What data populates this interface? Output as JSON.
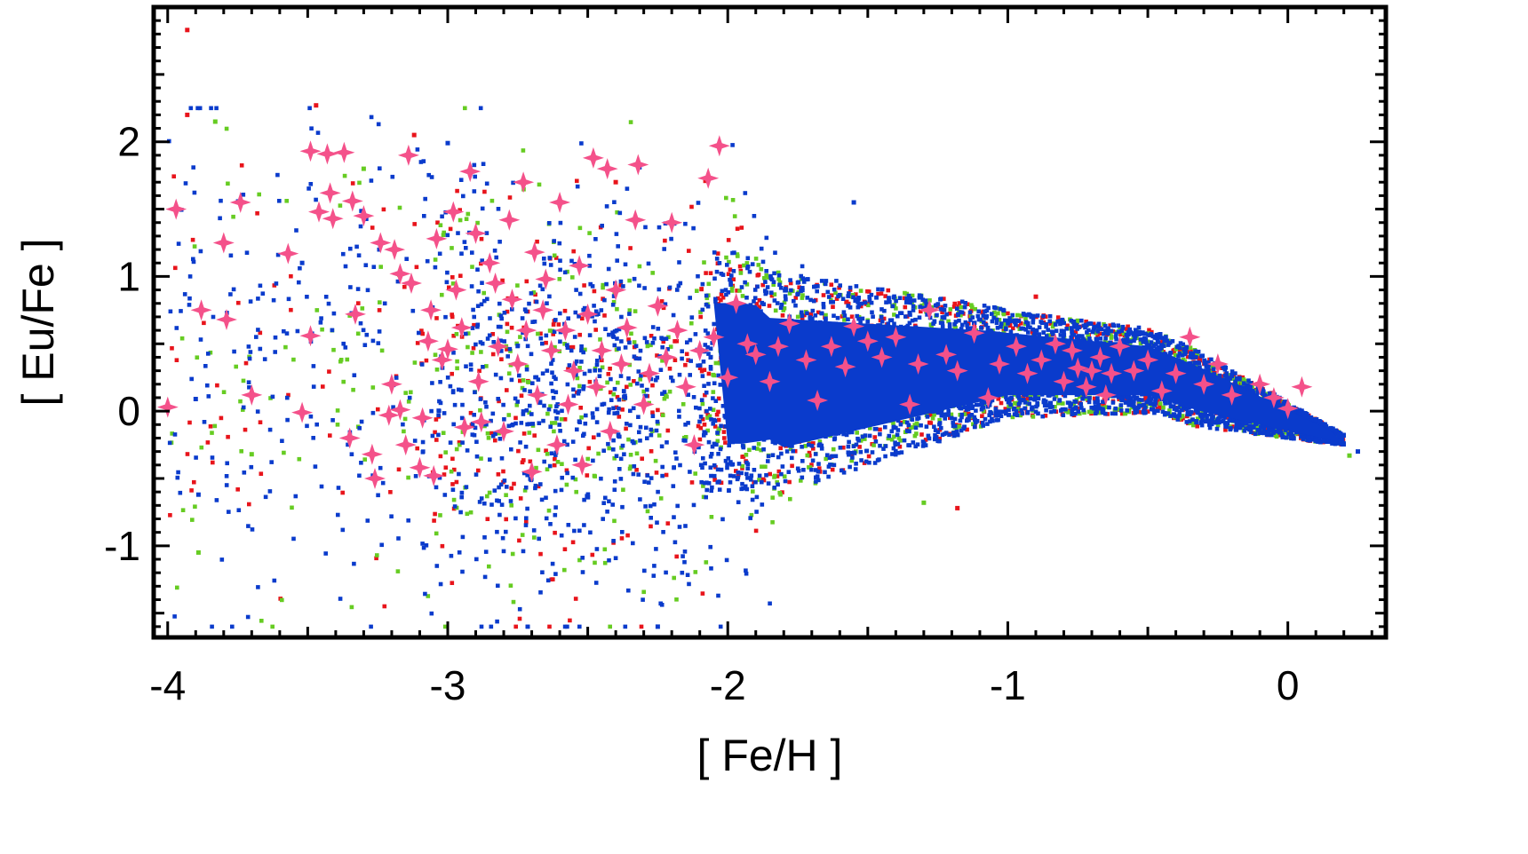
{
  "chart_data": {
    "type": "scatter",
    "title": "",
    "xlabel": "[ Fe/H ]",
    "ylabel": "[ Eu/Fe ]",
    "xlim": [
      -4.05,
      0.35
    ],
    "ylim": [
      -1.68,
      3.0
    ],
    "grid": false,
    "legend": "none",
    "x_ticks": [
      -4,
      -3,
      -2,
      -1,
      0
    ],
    "x_tick_labels": [
      "-4",
      "-3",
      "-2",
      "-1",
      "0"
    ],
    "y_ticks": [
      -1,
      0,
      1,
      2
    ],
    "y_tick_labels": [
      "-1",
      "0",
      "1",
      "2"
    ],
    "colors": {
      "red": "#e8141b",
      "green": "#66cc22",
      "blue": "#0a3bcc",
      "star": "#f4518a"
    },
    "series": [
      {
        "marker": "diamond-star",
        "color": "#f4518a",
        "points": [
          [
            -4.0,
            0.03
          ],
          [
            -3.97,
            1.5
          ],
          [
            -3.88,
            0.75
          ],
          [
            -3.8,
            1.25
          ],
          [
            -3.79,
            0.68
          ],
          [
            -3.74,
            1.55
          ],
          [
            -3.7,
            0.12
          ],
          [
            -3.57,
            1.17
          ],
          [
            -3.52,
            -0.01
          ],
          [
            -3.49,
            1.93
          ],
          [
            -3.49,
            0.56
          ],
          [
            -3.46,
            1.48
          ],
          [
            -3.43,
            1.91
          ],
          [
            -3.42,
            1.62
          ],
          [
            -3.41,
            1.43
          ],
          [
            -3.37,
            1.92
          ],
          [
            -3.35,
            -0.2
          ],
          [
            -3.34,
            1.56
          ],
          [
            -3.33,
            0.72
          ],
          [
            -3.3,
            1.45
          ],
          [
            -3.27,
            -0.32
          ],
          [
            -3.26,
            -0.5
          ],
          [
            -3.24,
            1.25
          ],
          [
            -3.21,
            -0.03
          ],
          [
            -3.2,
            0.2
          ],
          [
            -3.19,
            1.2
          ],
          [
            -3.17,
            1.02
          ],
          [
            -3.17,
            0.01
          ],
          [
            -3.15,
            -0.25
          ],
          [
            -3.14,
            1.9
          ],
          [
            -3.13,
            0.95
          ],
          [
            -3.1,
            -0.42
          ],
          [
            -3.09,
            -0.05
          ],
          [
            -3.07,
            0.52
          ],
          [
            -3.06,
            0.75
          ],
          [
            -3.05,
            -0.48
          ],
          [
            -3.04,
            1.28
          ],
          [
            -3.02,
            0.38
          ],
          [
            -3.0,
            0.46
          ],
          [
            -2.98,
            1.48
          ],
          [
            -2.97,
            0.9
          ],
          [
            -2.95,
            0.62
          ],
          [
            -2.94,
            -0.12
          ],
          [
            -2.92,
            1.78
          ],
          [
            -2.9,
            1.32
          ],
          [
            -2.89,
            0.22
          ],
          [
            -2.88,
            -0.08
          ],
          [
            -2.85,
            1.1
          ],
          [
            -2.83,
            0.95
          ],
          [
            -2.82,
            0.48
          ],
          [
            -2.8,
            -0.15
          ],
          [
            -2.78,
            1.42
          ],
          [
            -2.77,
            0.83
          ],
          [
            -2.75,
            0.35
          ],
          [
            -2.73,
            1.7
          ],
          [
            -2.72,
            0.6
          ],
          [
            -2.7,
            -0.45
          ],
          [
            -2.69,
            1.18
          ],
          [
            -2.68,
            0.12
          ],
          [
            -2.66,
            0.75
          ],
          [
            -2.65,
            0.98
          ],
          [
            -2.63,
            0.45
          ],
          [
            -2.61,
            -0.25
          ],
          [
            -2.6,
            1.55
          ],
          [
            -2.58,
            0.6
          ],
          [
            -2.57,
            0.05
          ],
          [
            -2.55,
            0.3
          ],
          [
            -2.53,
            1.08
          ],
          [
            -2.52,
            -0.4
          ],
          [
            -2.5,
            0.72
          ],
          [
            -2.48,
            1.88
          ],
          [
            -2.47,
            0.18
          ],
          [
            -2.45,
            0.45
          ],
          [
            -2.43,
            1.8
          ],
          [
            -2.42,
            -0.15
          ],
          [
            -2.4,
            0.9
          ],
          [
            -2.38,
            0.35
          ],
          [
            -2.36,
            0.62
          ],
          [
            -2.33,
            1.42
          ],
          [
            -2.32,
            1.83
          ],
          [
            -2.3,
            0.05
          ],
          [
            -2.28,
            0.28
          ],
          [
            -2.25,
            0.78
          ],
          [
            -2.22,
            0.4
          ],
          [
            -2.2,
            1.4
          ],
          [
            -2.18,
            0.6
          ],
          [
            -2.15,
            0.18
          ],
          [
            -2.12,
            -0.25
          ],
          [
            -2.1,
            0.45
          ],
          [
            -2.07,
            1.73
          ],
          [
            -2.05,
            0.55
          ],
          [
            -2.03,
            1.97
          ],
          [
            -2.0,
            0.25
          ],
          [
            -1.97,
            0.8
          ],
          [
            -1.93,
            0.5
          ],
          [
            -1.9,
            0.42
          ],
          [
            -1.85,
            0.22
          ],
          [
            -1.82,
            0.48
          ],
          [
            -1.78,
            0.65
          ],
          [
            -1.72,
            0.38
          ],
          [
            -1.68,
            0.08
          ],
          [
            -1.63,
            0.48
          ],
          [
            -1.58,
            0.33
          ],
          [
            -1.55,
            0.63
          ],
          [
            -1.5,
            0.52
          ],
          [
            -1.45,
            0.4
          ],
          [
            -1.4,
            0.55
          ],
          [
            -1.35,
            0.05
          ],
          [
            -1.32,
            0.35
          ],
          [
            -1.28,
            0.75
          ],
          [
            -1.22,
            0.42
          ],
          [
            -1.18,
            0.3
          ],
          [
            -1.12,
            0.58
          ],
          [
            -1.07,
            0.1
          ],
          [
            -1.03,
            0.35
          ],
          [
            -0.97,
            0.48
          ],
          [
            -0.93,
            0.28
          ],
          [
            -0.88,
            0.38
          ],
          [
            -0.83,
            0.5
          ],
          [
            -0.8,
            0.22
          ],
          [
            -0.77,
            0.45
          ],
          [
            -0.75,
            0.32
          ],
          [
            -0.72,
            0.18
          ],
          [
            -0.7,
            0.3
          ],
          [
            -0.67,
            0.4
          ],
          [
            -0.65,
            0.12
          ],
          [
            -0.63,
            0.28
          ],
          [
            -0.6,
            0.48
          ],
          [
            -0.55,
            0.3
          ],
          [
            -0.5,
            0.38
          ],
          [
            -0.45,
            0.15
          ],
          [
            -0.4,
            0.28
          ],
          [
            -0.35,
            0.55
          ],
          [
            -0.3,
            0.2
          ],
          [
            -0.25,
            0.35
          ],
          [
            -0.2,
            0.12
          ],
          [
            -0.1,
            0.2
          ],
          [
            -0.05,
            0.1
          ],
          [
            0.0,
            0.02
          ],
          [
            0.05,
            0.18
          ]
        ]
      },
      {
        "marker": "square",
        "color": "#e8141b",
        "points": [
          [
            -3.93,
            2.83
          ],
          [
            -3.93,
            2.2
          ],
          [
            -3.47,
            2.27
          ],
          [
            -3.12,
            2.05
          ],
          [
            -2.4,
            1.7
          ],
          [
            -1.18,
            -0.72
          ],
          [
            -0.9,
            0.85
          ]
        ]
      },
      {
        "marker": "square",
        "color": "#66cc22",
        "points": [
          [
            -3.83,
            2.15
          ],
          [
            -3.89,
            -1.05
          ],
          [
            -3.7,
            -0.32
          ],
          [
            -3.3,
            1.8
          ],
          [
            -1.3,
            -0.68
          ],
          [
            0.22,
            -0.33
          ]
        ]
      },
      {
        "marker": "square",
        "color": "#0a3bcc",
        "points": [
          [
            -3.9,
            0.09
          ],
          [
            -3.89,
            -0.62
          ],
          [
            -3.52,
            1.1
          ],
          [
            -3.0,
            1.99
          ],
          [
            -2.25,
            -1.6
          ],
          [
            -1.55,
            1.55
          ],
          [
            0.25,
            -0.3
          ]
        ]
      }
    ]
  }
}
